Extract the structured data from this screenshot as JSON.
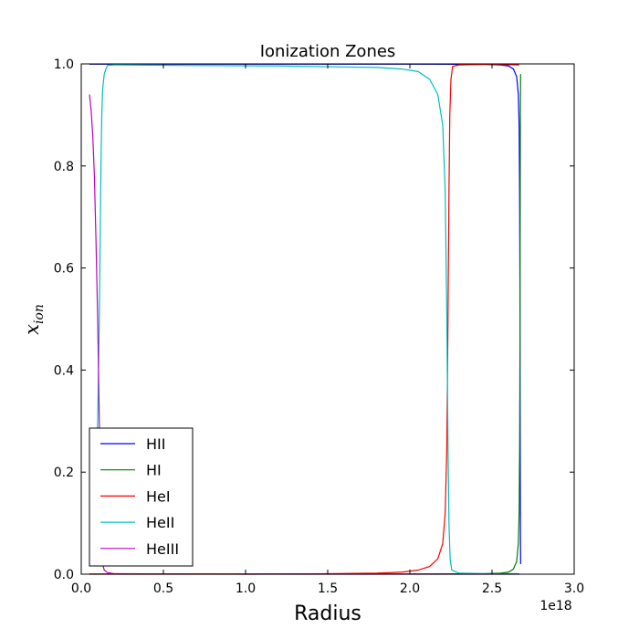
{
  "chart_data": {
    "type": "line",
    "title": "Ionization Zones",
    "xlabel": "Radius",
    "ylabel_base": "x",
    "ylabel_sub": "ion",
    "x_offset_label": "1e18",
    "xlim": [
      0.0,
      3.0
    ],
    "ylim": [
      0.0,
      1.0
    ],
    "x_ticks": [
      0.0,
      0.5,
      1.0,
      1.5,
      2.0,
      2.5,
      3.0
    ],
    "x_tick_labels": [
      "0.0",
      "0.5",
      "1.0",
      "1.5",
      "2.0",
      "2.5",
      "3.0"
    ],
    "y_ticks": [
      0.0,
      0.2,
      0.4,
      0.6,
      0.8,
      1.0
    ],
    "y_tick_labels": [
      "0.0",
      "0.2",
      "0.4",
      "0.6",
      "0.8",
      "1.0"
    ],
    "grid": false,
    "legend_position": "lower-left",
    "series": [
      {
        "name": "HII",
        "color": "#0000ff",
        "points": [
          [
            0.05,
            0.9995
          ],
          [
            0.5,
            0.9995
          ],
          [
            1.0,
            0.9995
          ],
          [
            1.5,
            0.9995
          ],
          [
            2.0,
            0.9995
          ],
          [
            2.3,
            0.9993
          ],
          [
            2.45,
            0.999
          ],
          [
            2.55,
            0.998
          ],
          [
            2.6,
            0.996
          ],
          [
            2.63,
            0.99
          ],
          [
            2.65,
            0.975
          ],
          [
            2.66,
            0.94
          ],
          [
            2.665,
            0.88
          ],
          [
            2.668,
            0.75
          ],
          [
            2.67,
            0.55
          ],
          [
            2.671,
            0.35
          ],
          [
            2.672,
            0.18
          ],
          [
            2.673,
            0.08
          ],
          [
            2.674,
            0.02
          ]
        ]
      },
      {
        "name": "HI",
        "color": "#008000",
        "points": [
          [
            0.05,
            0.0005
          ],
          [
            0.5,
            0.0005
          ],
          [
            1.0,
            0.0005
          ],
          [
            1.5,
            0.0005
          ],
          [
            2.0,
            0.0005
          ],
          [
            2.3,
            0.0007
          ],
          [
            2.45,
            0.001
          ],
          [
            2.55,
            0.002
          ],
          [
            2.6,
            0.004
          ],
          [
            2.63,
            0.01
          ],
          [
            2.65,
            0.025
          ],
          [
            2.66,
            0.06
          ],
          [
            2.665,
            0.12
          ],
          [
            2.668,
            0.25
          ],
          [
            2.67,
            0.45
          ],
          [
            2.671,
            0.65
          ],
          [
            2.672,
            0.82
          ],
          [
            2.673,
            0.92
          ],
          [
            2.674,
            0.98
          ]
        ]
      },
      {
        "name": "HeI",
        "color": "#ff0000",
        "points": [
          [
            0.05,
            0.0
          ],
          [
            0.5,
            0.0
          ],
          [
            1.0,
            0.0
          ],
          [
            1.5,
            0.001
          ],
          [
            1.8,
            0.002
          ],
          [
            1.95,
            0.004
          ],
          [
            2.05,
            0.008
          ],
          [
            2.12,
            0.015
          ],
          [
            2.17,
            0.03
          ],
          [
            2.2,
            0.06
          ],
          [
            2.215,
            0.12
          ],
          [
            2.225,
            0.25
          ],
          [
            2.232,
            0.5
          ],
          [
            2.238,
            0.75
          ],
          [
            2.243,
            0.9
          ],
          [
            2.25,
            0.97
          ],
          [
            2.26,
            0.995
          ],
          [
            2.3,
            0.998
          ],
          [
            2.5,
            0.999
          ],
          [
            2.6,
            0.9985
          ],
          [
            2.665,
            0.998
          ]
        ]
      },
      {
        "name": "HeII",
        "color": "#00bfbf",
        "points": [
          [
            0.05,
            0.06
          ],
          [
            0.07,
            0.1
          ],
          [
            0.09,
            0.2
          ],
          [
            0.1,
            0.3
          ],
          [
            0.11,
            0.5
          ],
          [
            0.115,
            0.65
          ],
          [
            0.12,
            0.8
          ],
          [
            0.125,
            0.9
          ],
          [
            0.13,
            0.95
          ],
          [
            0.14,
            0.98
          ],
          [
            0.15,
            0.99
          ],
          [
            0.16,
            0.997
          ],
          [
            0.2,
            0.998
          ],
          [
            0.6,
            0.997
          ],
          [
            1.2,
            0.996
          ],
          [
            1.8,
            0.993
          ],
          [
            1.95,
            0.99
          ],
          [
            2.05,
            0.985
          ],
          [
            2.12,
            0.97
          ],
          [
            2.17,
            0.94
          ],
          [
            2.2,
            0.88
          ],
          [
            2.215,
            0.75
          ],
          [
            2.225,
            0.5
          ],
          [
            2.232,
            0.25
          ],
          [
            2.238,
            0.1
          ],
          [
            2.245,
            0.03
          ],
          [
            2.255,
            0.008
          ],
          [
            2.3,
            0.002
          ],
          [
            2.5,
            0.001
          ],
          [
            2.665,
            0.001
          ]
        ]
      },
      {
        "name": "HeIII",
        "color": "#bf00bf",
        "points": [
          [
            0.05,
            0.94
          ],
          [
            0.06,
            0.91
          ],
          [
            0.07,
            0.86
          ],
          [
            0.08,
            0.78
          ],
          [
            0.09,
            0.65
          ],
          [
            0.1,
            0.5
          ],
          [
            0.105,
            0.4
          ],
          [
            0.11,
            0.3
          ],
          [
            0.115,
            0.2
          ],
          [
            0.12,
            0.1
          ],
          [
            0.125,
            0.05
          ],
          [
            0.13,
            0.02
          ],
          [
            0.14,
            0.008
          ],
          [
            0.16,
            0.003
          ],
          [
            0.2,
            0.001
          ],
          [
            1.0,
            0.0
          ],
          [
            2.665,
            0.0
          ]
        ]
      }
    ]
  }
}
